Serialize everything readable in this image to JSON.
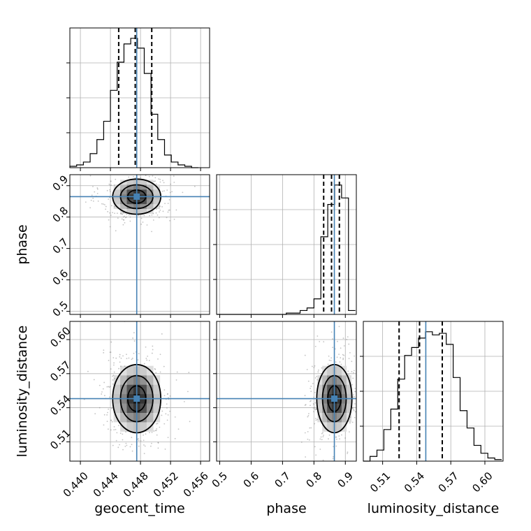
{
  "chart_data": {
    "type": "corner",
    "parameters": [
      "geocent_time",
      "phase",
      "luminosity_distance"
    ],
    "truths": {
      "geocent_time": 0.4475,
      "phase": 0.865,
      "luminosity_distance": 0.548
    },
    "ranges": {
      "geocent_time": [
        0.4386,
        0.4572
      ],
      "phase": [
        0.49,
        0.935
      ],
      "luminosity_distance": [
        0.493,
        0.616
      ]
    },
    "ticks": {
      "geocent_time": [
        "0.440",
        "0.444",
        "0.448",
        "0.452",
        "0.456"
      ],
      "phase": [
        "0.5",
        "0.6",
        "0.7",
        "0.8",
        "0.9"
      ],
      "luminosity_distance": [
        "0.51",
        "0.54",
        "0.57",
        "0.60"
      ]
    },
    "quantiles": {
      "geocent_time": [
        0.4451,
        0.4473,
        0.4495
      ],
      "phase": [
        0.831,
        0.856,
        0.881
      ],
      "luminosity_distance": [
        0.5245,
        0.5425,
        0.5625
      ]
    },
    "histograms": {
      "geocent_time": {
        "bin_edges": [
          0.4386,
          0.4395,
          0.4404,
          0.4413,
          0.4422,
          0.4431,
          0.444,
          0.4449,
          0.4458,
          0.4467,
          0.4476,
          0.4485,
          0.4494,
          0.4503,
          0.4512,
          0.4521,
          0.453,
          0.4539,
          0.4548,
          0.4557
        ],
        "counts": [
          1,
          2,
          4,
          10,
          20,
          33,
          55,
          75,
          88,
          92,
          85,
          67,
          38,
          20,
          9,
          4,
          2,
          1,
          0
        ]
      },
      "phase": {
        "bin_edges": [
          0.492,
          0.514,
          0.536,
          0.558,
          0.58,
          0.602,
          0.624,
          0.646,
          0.668,
          0.69,
          0.712,
          0.734,
          0.756,
          0.778,
          0.8,
          0.822,
          0.844,
          0.866,
          0.888,
          0.91,
          0.932
        ],
        "counts": [
          0,
          0,
          0,
          0,
          0,
          0,
          0,
          0,
          0,
          0,
          1,
          1,
          3,
          5,
          12,
          60,
          85,
          100,
          90,
          3
        ]
      },
      "luminosity_distance": {
        "bin_edges": [
          0.4928,
          0.4989,
          0.505,
          0.5111,
          0.5172,
          0.5233,
          0.5294,
          0.5355,
          0.5416,
          0.5477,
          0.5538,
          0.5599,
          0.566,
          0.5721,
          0.5782,
          0.5843,
          0.5904,
          0.5965,
          0.6026,
          0.6087,
          0.6148
        ],
        "counts": [
          0,
          3,
          7,
          20,
          33,
          52,
          67,
          72,
          78,
          82,
          80,
          81,
          74,
          53,
          32,
          21,
          10,
          5,
          2,
          1
        ]
      }
    },
    "truth_color": "#4682b4",
    "grid": true,
    "legend": "none"
  }
}
